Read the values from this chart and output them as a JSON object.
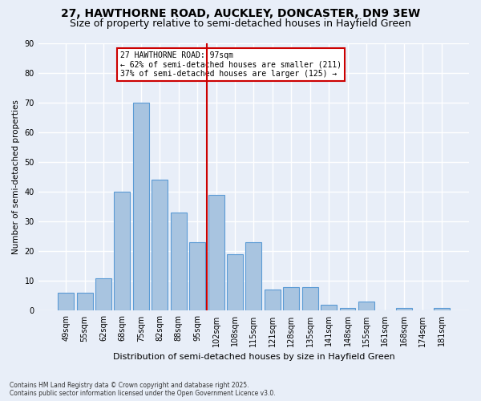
{
  "title": "27, HAWTHORNE ROAD, AUCKLEY, DONCASTER, DN9 3EW",
  "subtitle": "Size of property relative to semi-detached houses in Hayfield Green",
  "xlabel": "Distribution of semi-detached houses by size in Hayfield Green",
  "ylabel": "Number of semi-detached properties",
  "footnote": "Contains HM Land Registry data © Crown copyright and database right 2025.\nContains public sector information licensed under the Open Government Licence v3.0.",
  "categories": [
    "49sqm",
    "55sqm",
    "62sqm",
    "68sqm",
    "75sqm",
    "82sqm",
    "88sqm",
    "95sqm",
    "102sqm",
    "108sqm",
    "115sqm",
    "121sqm",
    "128sqm",
    "135sqm",
    "141sqm",
    "148sqm",
    "155sqm",
    "161sqm",
    "168sqm",
    "174sqm",
    "181sqm"
  ],
  "values": [
    6,
    6,
    11,
    40,
    70,
    44,
    33,
    23,
    39,
    19,
    23,
    7,
    8,
    8,
    2,
    1,
    3,
    0,
    1,
    0,
    1
  ],
  "bar_color": "#a8c4e0",
  "bar_edge_color": "#5b9bd5",
  "vline_color": "#cc0000",
  "annotation_text": "27 HAWTHORNE ROAD: 97sqm\n← 62% of semi-detached houses are smaller (211)\n37% of semi-detached houses are larger (125) →",
  "annotation_box_color": "#cc0000",
  "ylim": [
    0,
    90
  ],
  "yticks": [
    0,
    10,
    20,
    30,
    40,
    50,
    60,
    70,
    80,
    90
  ],
  "background_color": "#e8eef8",
  "plot_background": "#e8eef8",
  "grid_color": "#ffffff",
  "title_fontsize": 10,
  "subtitle_fontsize": 9
}
